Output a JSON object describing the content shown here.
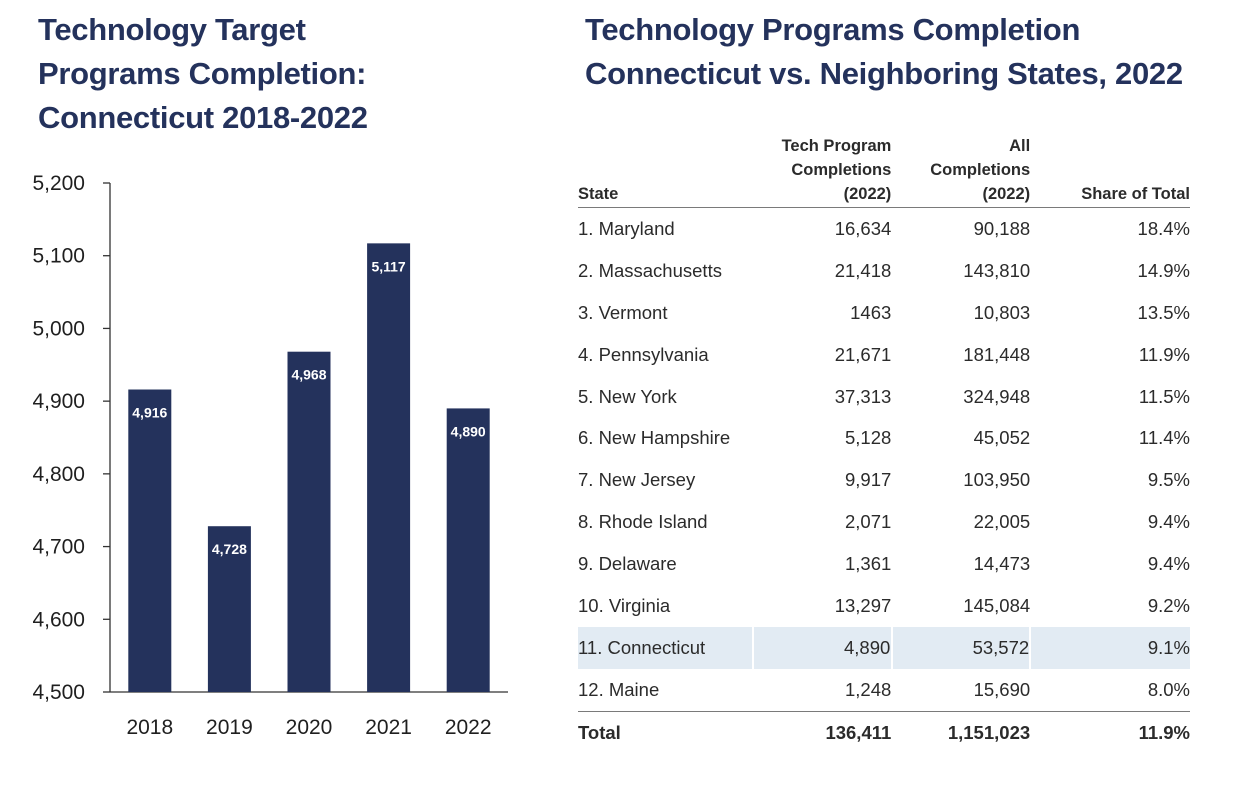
{
  "chart_data": [
    {
      "type": "bar",
      "title": "Technology Target Programs Completion: Connecticut 2018-2022",
      "title_lines": [
        "Technology Target",
        "Programs Completion:",
        "Connecticut 2018-2022"
      ],
      "categories": [
        "2018",
        "2019",
        "2020",
        "2021",
        "2022"
      ],
      "values": [
        4916,
        4728,
        4968,
        5117,
        4890
      ],
      "data_labels": [
        "4,916",
        "4,728",
        "4,968",
        "5,117",
        "4,890"
      ],
      "ylim": [
        4500,
        5200
      ],
      "yticks": [
        4500,
        4600,
        4700,
        4800,
        4900,
        5000,
        5100,
        5200
      ],
      "ytick_labels": [
        "4,500",
        "4,600",
        "4,700",
        "4,800",
        "4,900",
        "5,000",
        "5,100",
        "5,200"
      ],
      "xlabel": "",
      "ylabel": "",
      "grid": false,
      "bar_color": "#24325c"
    },
    {
      "type": "table",
      "title": "Technology Programs Completion Connecticut vs. Neighboring States, 2022",
      "title_lines": [
        "Technology Programs Completion",
        "Connecticut vs. Neighboring States, 2022"
      ],
      "columns": [
        [
          "State"
        ],
        [
          "Tech Program",
          "Completions",
          "(2022)"
        ],
        [
          "All",
          "Completions",
          "(2022)"
        ],
        [
          "Share of Total"
        ]
      ],
      "rows": [
        {
          "state": "1. Maryland",
          "tech": "16,634",
          "all": "90,188",
          "share": "18.4%"
        },
        {
          "state": "2. Massachusetts",
          "tech": "21,418",
          "all": "143,810",
          "share": "14.9%"
        },
        {
          "state": "3. Vermont",
          "tech": "1463",
          "all": "10,803",
          "share": "13.5%"
        },
        {
          "state": "4. Pennsylvania",
          "tech": "21,671",
          "all": "181,448",
          "share": "11.9%"
        },
        {
          "state": "5. New York",
          "tech": "37,313",
          "all": "324,948",
          "share": "11.5%"
        },
        {
          "state": "6. New Hampshire",
          "tech": "5,128",
          "all": "45,052",
          "share": "11.4%"
        },
        {
          "state": "7. New Jersey",
          "tech": "9,917",
          "all": "103,950",
          "share": "9.5%"
        },
        {
          "state": "8. Rhode Island",
          "tech": "2,071",
          "all": "22,005",
          "share": "9.4%"
        },
        {
          "state": "9. Delaware",
          "tech": "1,361",
          "all": "14,473",
          "share": "9.4%"
        },
        {
          "state": "10. Virginia",
          "tech": "13,297",
          "all": "145,084",
          "share": "9.2%"
        },
        {
          "state": "11. Connecticut",
          "tech": "4,890",
          "all": "53,572",
          "share": "9.1%",
          "highlight": true
        },
        {
          "state": "12. Maine",
          "tech": "1,248",
          "all": "15,690",
          "share": "8.0%"
        }
      ],
      "total": {
        "state": "Total",
        "tech": "136,411",
        "all": "1,151,023",
        "share": "11.9%"
      },
      "highlight_color": "#e2ebf3"
    }
  ]
}
